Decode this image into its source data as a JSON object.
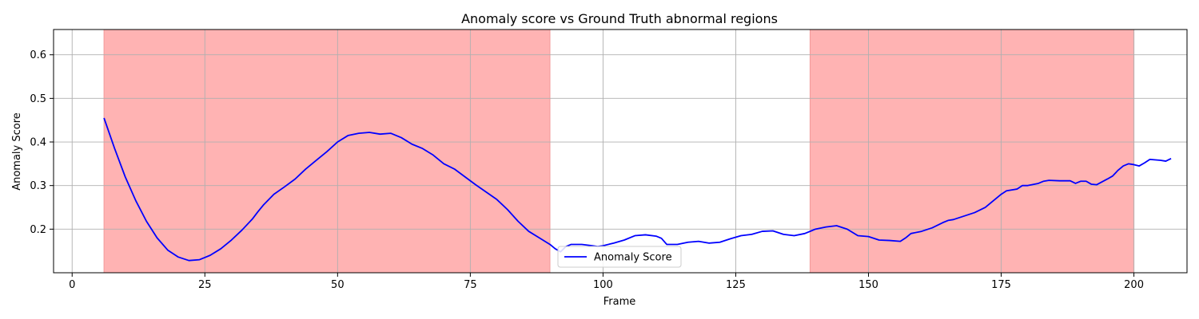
{
  "chart_data": {
    "type": "line",
    "title": "Anomaly score vs Ground Truth abnormal regions",
    "xlabel": "Frame",
    "ylabel": "Anomaly Score",
    "xlim": [
      -3.5,
      210
    ],
    "ylim": [
      0.1,
      0.658
    ],
    "xticks": [
      0,
      25,
      50,
      75,
      100,
      125,
      150,
      175,
      200
    ],
    "yticks": [
      0.2,
      0.3,
      0.4,
      0.5,
      0.6
    ],
    "grid": true,
    "legend_position": "bottom-center",
    "abnormal_regions": [
      [
        6,
        90
      ],
      [
        139,
        200
      ]
    ],
    "region_color": "#ffb3b3",
    "series": [
      {
        "name": "Anomaly Score",
        "color": "#0000ff",
        "points": [
          [
            6,
            0.455
          ],
          [
            8,
            0.385
          ],
          [
            10,
            0.32
          ],
          [
            12,
            0.265
          ],
          [
            14,
            0.218
          ],
          [
            16,
            0.18
          ],
          [
            18,
            0.152
          ],
          [
            20,
            0.136
          ],
          [
            22,
            0.128
          ],
          [
            24,
            0.13
          ],
          [
            26,
            0.14
          ],
          [
            28,
            0.155
          ],
          [
            30,
            0.175
          ],
          [
            32,
            0.198
          ],
          [
            34,
            0.224
          ],
          [
            35,
            0.24
          ],
          [
            36,
            0.255
          ],
          [
            38,
            0.28
          ],
          [
            40,
            0.297
          ],
          [
            42,
            0.315
          ],
          [
            44,
            0.338
          ],
          [
            46,
            0.358
          ],
          [
            48,
            0.378
          ],
          [
            50,
            0.4
          ],
          [
            52,
            0.415
          ],
          [
            54,
            0.42
          ],
          [
            56,
            0.422
          ],
          [
            58,
            0.418
          ],
          [
            60,
            0.42
          ],
          [
            62,
            0.41
          ],
          [
            64,
            0.395
          ],
          [
            66,
            0.385
          ],
          [
            68,
            0.37
          ],
          [
            70,
            0.35
          ],
          [
            72,
            0.338
          ],
          [
            74,
            0.32
          ],
          [
            76,
            0.302
          ],
          [
            78,
            0.285
          ],
          [
            80,
            0.268
          ],
          [
            82,
            0.245
          ],
          [
            84,
            0.218
          ],
          [
            86,
            0.195
          ],
          [
            88,
            0.18
          ],
          [
            90,
            0.165
          ],
          [
            91,
            0.155
          ],
          [
            92,
            0.148
          ],
          [
            93,
            0.16
          ],
          [
            94,
            0.165
          ],
          [
            96,
            0.165
          ],
          [
            98,
            0.162
          ],
          [
            99,
            0.16
          ],
          [
            100,
            0.162
          ],
          [
            102,
            0.168
          ],
          [
            104,
            0.175
          ],
          [
            106,
            0.185
          ],
          [
            108,
            0.187
          ],
          [
            110,
            0.184
          ],
          [
            111,
            0.179
          ],
          [
            112,
            0.165
          ],
          [
            114,
            0.165
          ],
          [
            116,
            0.17
          ],
          [
            118,
            0.172
          ],
          [
            120,
            0.168
          ],
          [
            122,
            0.17
          ],
          [
            124,
            0.178
          ],
          [
            126,
            0.185
          ],
          [
            128,
            0.188
          ],
          [
            130,
            0.195
          ],
          [
            132,
            0.196
          ],
          [
            134,
            0.188
          ],
          [
            136,
            0.185
          ],
          [
            138,
            0.19
          ],
          [
            140,
            0.2
          ],
          [
            142,
            0.205
          ],
          [
            144,
            0.208
          ],
          [
            146,
            0.2
          ],
          [
            148,
            0.185
          ],
          [
            150,
            0.183
          ],
          [
            152,
            0.175
          ],
          [
            154,
            0.174
          ],
          [
            156,
            0.172
          ],
          [
            157,
            0.18
          ],
          [
            158,
            0.19
          ],
          [
            160,
            0.195
          ],
          [
            162,
            0.203
          ],
          [
            164,
            0.215
          ],
          [
            165,
            0.22
          ],
          [
            166,
            0.222
          ],
          [
            168,
            0.23
          ],
          [
            170,
            0.238
          ],
          [
            172,
            0.25
          ],
          [
            174,
            0.27
          ],
          [
            175,
            0.28
          ],
          [
            176,
            0.288
          ],
          [
            178,
            0.292
          ],
          [
            179,
            0.3
          ],
          [
            180,
            0.3
          ],
          [
            182,
            0.305
          ],
          [
            183,
            0.31
          ],
          [
            184,
            0.312
          ],
          [
            186,
            0.311
          ],
          [
            188,
            0.311
          ],
          [
            189,
            0.305
          ],
          [
            190,
            0.31
          ],
          [
            191,
            0.31
          ],
          [
            192,
            0.303
          ],
          [
            193,
            0.302
          ],
          [
            195,
            0.315
          ],
          [
            196,
            0.322
          ],
          [
            197,
            0.335
          ],
          [
            198,
            0.345
          ],
          [
            199,
            0.35
          ],
          [
            200,
            0.348
          ],
          [
            201,
            0.345
          ],
          [
            202,
            0.352
          ],
          [
            203,
            0.36
          ],
          [
            205,
            0.358
          ],
          [
            206,
            0.356
          ],
          [
            207,
            0.362
          ]
        ]
      }
    ]
  }
}
